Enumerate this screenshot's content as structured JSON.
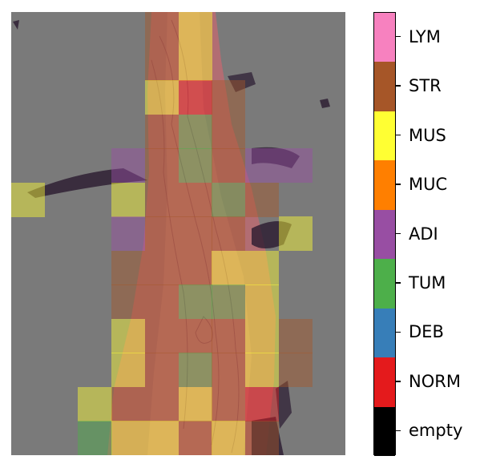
{
  "figure": {
    "background_color": "#7a7a7a",
    "tissue_color": "#b86b72",
    "tissue_dark_color": "#2a1a30"
  },
  "colorbar": {
    "classes": [
      {
        "label": "LYM",
        "color": "#f781bf"
      },
      {
        "label": "STR",
        "color": "#a65628"
      },
      {
        "label": "MUS",
        "color": "#ffff33"
      },
      {
        "label": "MUC",
        "color": "#ff7f00"
      },
      {
        "label": "ADI",
        "color": "#984ea3"
      },
      {
        "label": "TUM",
        "color": "#4daf4a"
      },
      {
        "label": "DEB",
        "color": "#377eb8"
      },
      {
        "label": "NORM",
        "color": "#e41a1c"
      },
      {
        "label": "empty",
        "color": "#000000"
      }
    ]
  },
  "tile_map": {
    "cols": 10,
    "rows": 13,
    "tiles": [
      {
        "col": 4,
        "row": 0,
        "cls": "STR"
      },
      {
        "col": 5,
        "row": 0,
        "cls": "MUS"
      },
      {
        "col": 4,
        "row": 1,
        "cls": "STR"
      },
      {
        "col": 5,
        "row": 1,
        "cls": "MUS"
      },
      {
        "col": 4,
        "row": 2,
        "cls": "MUS"
      },
      {
        "col": 5,
        "row": 2,
        "cls": "NORM"
      },
      {
        "col": 6,
        "row": 2,
        "cls": "STR"
      },
      {
        "col": 4,
        "row": 3,
        "cls": "STR"
      },
      {
        "col": 5,
        "row": 3,
        "cls": "TUM"
      },
      {
        "col": 6,
        "row": 3,
        "cls": "STR"
      },
      {
        "col": 3,
        "row": 4,
        "cls": "ADI"
      },
      {
        "col": 4,
        "row": 4,
        "cls": "STR"
      },
      {
        "col": 5,
        "row": 4,
        "cls": "TUM"
      },
      {
        "col": 6,
        "row": 4,
        "cls": "STR"
      },
      {
        "col": 7,
        "row": 4,
        "cls": "ADI"
      },
      {
        "col": 8,
        "row": 4,
        "cls": "ADI"
      },
      {
        "col": 0,
        "row": 5,
        "cls": "MUS"
      },
      {
        "col": 3,
        "row": 5,
        "cls": "MUS"
      },
      {
        "col": 4,
        "row": 5,
        "cls": "STR"
      },
      {
        "col": 5,
        "row": 5,
        "cls": "STR"
      },
      {
        "col": 6,
        "row": 5,
        "cls": "TUM"
      },
      {
        "col": 7,
        "row": 5,
        "cls": "STR"
      },
      {
        "col": 3,
        "row": 6,
        "cls": "ADI"
      },
      {
        "col": 4,
        "row": 6,
        "cls": "STR"
      },
      {
        "col": 5,
        "row": 6,
        "cls": "STR"
      },
      {
        "col": 6,
        "row": 6,
        "cls": "STR"
      },
      {
        "col": 8,
        "row": 6,
        "cls": "MUS"
      },
      {
        "col": 3,
        "row": 7,
        "cls": "STR"
      },
      {
        "col": 4,
        "row": 7,
        "cls": "STR"
      },
      {
        "col": 5,
        "row": 7,
        "cls": "STR"
      },
      {
        "col": 6,
        "row": 7,
        "cls": "MUS"
      },
      {
        "col": 7,
        "row": 7,
        "cls": "MUS"
      },
      {
        "col": 3,
        "row": 8,
        "cls": "STR"
      },
      {
        "col": 4,
        "row": 8,
        "cls": "STR"
      },
      {
        "col": 5,
        "row": 8,
        "cls": "TUM"
      },
      {
        "col": 6,
        "row": 8,
        "cls": "TUM"
      },
      {
        "col": 7,
        "row": 8,
        "cls": "MUS"
      },
      {
        "col": 3,
        "row": 9,
        "cls": "MUS"
      },
      {
        "col": 4,
        "row": 9,
        "cls": "STR"
      },
      {
        "col": 5,
        "row": 9,
        "cls": "STR"
      },
      {
        "col": 6,
        "row": 9,
        "cls": "STR"
      },
      {
        "col": 7,
        "row": 9,
        "cls": "MUS"
      },
      {
        "col": 8,
        "row": 9,
        "cls": "STR"
      },
      {
        "col": 3,
        "row": 10,
        "cls": "MUS"
      },
      {
        "col": 4,
        "row": 10,
        "cls": "STR"
      },
      {
        "col": 5,
        "row": 10,
        "cls": "TUM"
      },
      {
        "col": 6,
        "row": 10,
        "cls": "STR"
      },
      {
        "col": 7,
        "row": 10,
        "cls": "MUS"
      },
      {
        "col": 8,
        "row": 10,
        "cls": "STR"
      },
      {
        "col": 2,
        "row": 11,
        "cls": "MUS"
      },
      {
        "col": 3,
        "row": 11,
        "cls": "STR"
      },
      {
        "col": 4,
        "row": 11,
        "cls": "STR"
      },
      {
        "col": 5,
        "row": 11,
        "cls": "MUS"
      },
      {
        "col": 6,
        "row": 11,
        "cls": "STR"
      },
      {
        "col": 7,
        "row": 11,
        "cls": "NORM"
      },
      {
        "col": 2,
        "row": 12,
        "cls": "TUM"
      },
      {
        "col": 3,
        "row": 12,
        "cls": "MUS"
      },
      {
        "col": 4,
        "row": 12,
        "cls": "MUS"
      },
      {
        "col": 5,
        "row": 12,
        "cls": "STR"
      },
      {
        "col": 6,
        "row": 12,
        "cls": "MUS"
      },
      {
        "col": 7,
        "row": 12,
        "cls": "STR"
      }
    ]
  }
}
